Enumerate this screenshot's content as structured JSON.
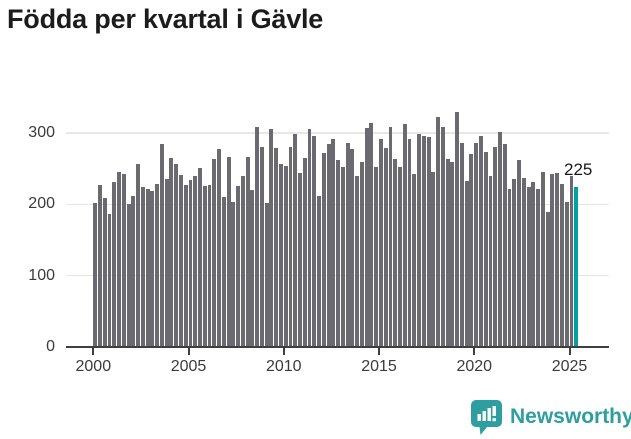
{
  "header": {
    "title": "Födda per kvartal i Gävle"
  },
  "footer": {
    "brand": "Newsworthy",
    "logo_icon": "bar-chart-speech-bubble-icon"
  },
  "colors": {
    "bar": "#6A6A70",
    "highlight": "#00A1A6",
    "axis": "#3f3f3f",
    "grid": "#e7e7e7",
    "title": "#1c1c1c",
    "tick_label": "#3b3b3b",
    "brand": "#2f9ea0"
  },
  "chart_data": {
    "type": "bar",
    "title": "Födda per kvartal i Gävle",
    "xlabel": "",
    "ylabel": "",
    "grid": "horizontal",
    "legend": "none",
    "ylim": [
      0,
      348
    ],
    "y_tick_values": [
      0,
      100,
      200,
      300
    ],
    "x_tick_labels": [
      "2000",
      "2005",
      "2010",
      "2015",
      "2020",
      "2025"
    ],
    "bars_per_year": 4,
    "highlight_index": 101,
    "highlight_label": "225",
    "categories": [
      "2000 Q1",
      "2000 Q2",
      "2000 Q3",
      "2000 Q4",
      "2001 Q1",
      "2001 Q2",
      "2001 Q3",
      "2001 Q4",
      "2002 Q1",
      "2002 Q2",
      "2002 Q3",
      "2002 Q4",
      "2003 Q1",
      "2003 Q2",
      "2003 Q3",
      "2003 Q4",
      "2004 Q1",
      "2004 Q2",
      "2004 Q3",
      "2004 Q4",
      "2005 Q1",
      "2005 Q2",
      "2005 Q3",
      "2005 Q4",
      "2006 Q1",
      "2006 Q2",
      "2006 Q3",
      "2006 Q4",
      "2007 Q1",
      "2007 Q2",
      "2007 Q3",
      "2007 Q4",
      "2008 Q1",
      "2008 Q2",
      "2008 Q3",
      "2008 Q4",
      "2009 Q1",
      "2009 Q2",
      "2009 Q3",
      "2009 Q4",
      "2010 Q1",
      "2010 Q2",
      "2010 Q3",
      "2010 Q4",
      "2011 Q1",
      "2011 Q2",
      "2011 Q3",
      "2011 Q4",
      "2012 Q1",
      "2012 Q2",
      "2012 Q3",
      "2012 Q4",
      "2013 Q1",
      "2013 Q2",
      "2013 Q3",
      "2013 Q4",
      "2014 Q1",
      "2014 Q2",
      "2014 Q3",
      "2014 Q4",
      "2015 Q1",
      "2015 Q2",
      "2015 Q3",
      "2015 Q4",
      "2016 Q1",
      "2016 Q2",
      "2016 Q3",
      "2016 Q4",
      "2017 Q1",
      "2017 Q2",
      "2017 Q3",
      "2017 Q4",
      "2018 Q1",
      "2018 Q2",
      "2018 Q3",
      "2018 Q4",
      "2019 Q1",
      "2019 Q2",
      "2019 Q3",
      "2019 Q4",
      "2020 Q1",
      "2020 Q2",
      "2020 Q3",
      "2020 Q4",
      "2021 Q1",
      "2021 Q2",
      "2021 Q3",
      "2021 Q4",
      "2022 Q1",
      "2022 Q2",
      "2022 Q3",
      "2022 Q4",
      "2023 Q1",
      "2023 Q2",
      "2023 Q3",
      "2023 Q4",
      "2024 Q1",
      "2024 Q2",
      "2024 Q3",
      "2024 Q4",
      "2025 Q1",
      "2025 Q2"
    ],
    "values": [
      202,
      227,
      209,
      187,
      231,
      246,
      243,
      200,
      212,
      257,
      225,
      221,
      219,
      228,
      285,
      235,
      265,
      256,
      241,
      227,
      234,
      240,
      251,
      226,
      227,
      263,
      278,
      210,
      267,
      203,
      226,
      240,
      267,
      220,
      308,
      280,
      202,
      305,
      279,
      256,
      254,
      280,
      299,
      244,
      265,
      305,
      296,
      212,
      272,
      284,
      292,
      262,
      253,
      286,
      278,
      240,
      260,
      307,
      314,
      253,
      291,
      279,
      309,
      264,
      253,
      312,
      291,
      242,
      299,
      296,
      294,
      246,
      323,
      308,
      263,
      260,
      330,
      286,
      233,
      270,
      286,
      296,
      274,
      240,
      280,
      301,
      285,
      222,
      236,
      262,
      237,
      225,
      231,
      222,
      245,
      189,
      242,
      244,
      229,
      203,
      240,
      225
    ]
  }
}
